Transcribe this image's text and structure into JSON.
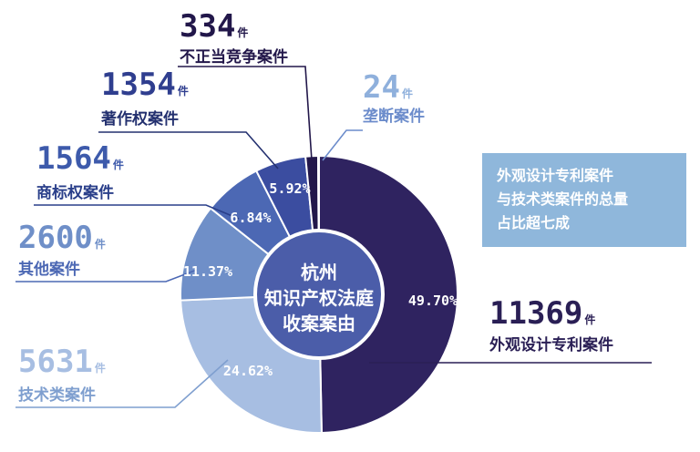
{
  "center_label": [
    "杭州",
    "知识产权法庭",
    "收案案由"
  ],
  "note": [
    "外观设计专利案件",
    "与技术类案件的总量",
    "占比超七成"
  ],
  "unit": "件",
  "colors": {
    "外观设计专利案件": "#2f2360",
    "技术类案件": "#a7bee2",
    "其他案件": "#6f8fc8",
    "商标权案件": "#4c68b4",
    "著作权案件": "#3b4da0",
    "不正当竞争案件": "#22174a",
    "垄断案件": "#4a7fd0",
    "center": "#4b5da9",
    "note_bg": "#8fb7db"
  },
  "chart_data": {
    "type": "pie",
    "donut": true,
    "slices": [
      {
        "label": "外观设计专利案件",
        "count": "11369",
        "percent": "49.70%",
        "value": 49.7
      },
      {
        "label": "技术类案件",
        "count": "5631",
        "percent": "24.62%",
        "value": 24.62
      },
      {
        "label": "其他案件",
        "count": "2600",
        "percent": "11.37%",
        "value": 11.37
      },
      {
        "label": "商标权案件",
        "count": "1564",
        "percent": "6.84%",
        "value": 6.84
      },
      {
        "label": "著作权案件",
        "count": "1354",
        "percent": "5.92%",
        "value": 5.92
      },
      {
        "label": "不正当竞争案件",
        "count": "334",
        "percent": "1.46%",
        "value": 1.46
      },
      {
        "label": "垄断案件",
        "count": "24",
        "percent": "0.10%",
        "value": 0.1
      }
    ]
  }
}
